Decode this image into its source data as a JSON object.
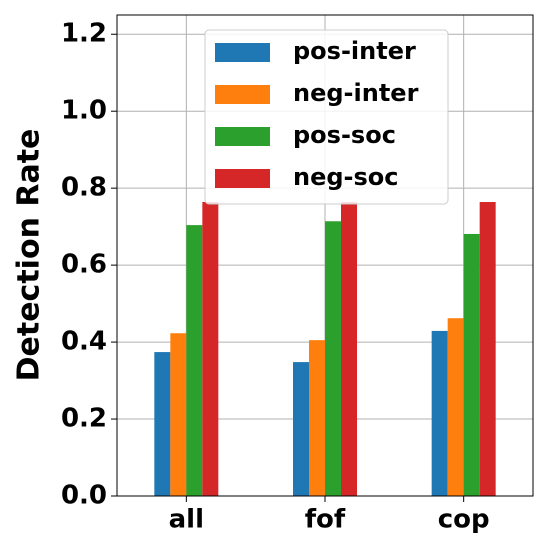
{
  "chart_data": {
    "type": "bar",
    "ylabel": "Detection Rate",
    "categories": [
      "all",
      "fof",
      "cop"
    ],
    "series": [
      {
        "name": "pos-inter",
        "color": "#1f77b4",
        "values": [
          0.374,
          0.348,
          0.429
        ]
      },
      {
        "name": "neg-inter",
        "color": "#ff7f0e",
        "values": [
          0.423,
          0.405,
          0.462
        ]
      },
      {
        "name": "pos-soc",
        "color": "#2ca02c",
        "values": [
          0.704,
          0.714,
          0.681
        ]
      },
      {
        "name": "neg-soc",
        "color": "#d62728",
        "values": [
          0.764,
          0.764,
          0.764
        ]
      }
    ],
    "ylim": [
      0,
      1.25
    ],
    "yticks": [
      {
        "value": 0,
        "label": "0.0"
      },
      {
        "value": 0.2,
        "label": "0.2"
      },
      {
        "value": 0.4,
        "label": "0.4"
      },
      {
        "value": 0.6,
        "label": "0.6"
      },
      {
        "value": 0.8,
        "label": "0.8"
      },
      {
        "value": 1.0,
        "label": "1.0"
      },
      {
        "value": 1.2,
        "label": "1.2"
      }
    ],
    "grid": true,
    "legend": "upper center"
  }
}
